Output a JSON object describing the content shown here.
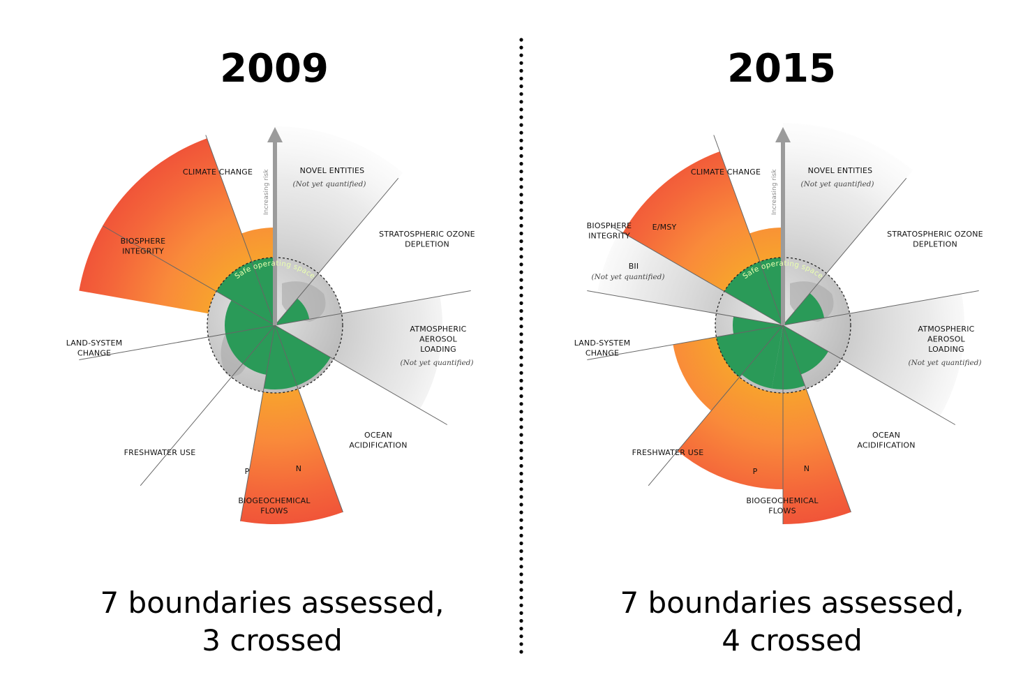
{
  "panels": [
    {
      "year": "2009",
      "summary_line1": "7 boundaries assessed,",
      "summary_line2": "3 crossed",
      "risk_label": "Increasing risk",
      "safe_label": "Safe operating space",
      "labels": {
        "climate_change": [
          "CLIMATE CHANGE"
        ],
        "novel_entities": [
          "NOVEL ENTITIES"
        ],
        "novel_entities_note": "(Not yet quantified)",
        "ozone": [
          "STRATOSPHERIC OZONE",
          "DEPLETION"
        ],
        "aerosol": [
          "ATMOSPHERIC",
          "AEROSOL",
          "LOADING"
        ],
        "aerosol_note": "(Not yet quantified)",
        "ocean": [
          "OCEAN",
          "ACIDIFICATION"
        ],
        "biogeochemical": [
          "BIOGEOCHEMICAL",
          "FLOWS"
        ],
        "p": "P",
        "n": "N",
        "freshwater": [
          "FRESHWATER USE"
        ],
        "land_system": [
          "LAND-SYSTEM",
          "CHANGE"
        ],
        "biosphere": [
          "BIOSPHERE",
          "INTEGRITY"
        ]
      }
    },
    {
      "year": "2015",
      "summary_line1": "7 boundaries assessed,",
      "summary_line2": "4 crossed",
      "risk_label": "Increasing risk",
      "safe_label": "Safe operating space",
      "labels": {
        "climate_change": [
          "CLIMATE CHANGE"
        ],
        "novel_entities": [
          "NOVEL ENTITIES"
        ],
        "novel_entities_note": "(Not yet quantified)",
        "ozone": [
          "STRATOSPHERIC OZONE",
          "DEPLETION"
        ],
        "aerosol": [
          "ATMOSPHERIC",
          "AEROSOL",
          "LOADING"
        ],
        "aerosol_note": "(Not yet quantified)",
        "ocean": [
          "OCEAN",
          "ACIDIFICATION"
        ],
        "biogeochemical": [
          "BIOGEOCHEMICAL",
          "FLOWS"
        ],
        "p": "P",
        "n": "N",
        "freshwater": [
          "FRESHWATER USE"
        ],
        "land_system": [
          "LAND-SYSTEM",
          "CHANGE"
        ],
        "biosphere": [
          "BIOSPHERE",
          "INTEGRITY"
        ],
        "emsy": "E/MSY",
        "bii": "BII",
        "bii_note": "(Not yet quantified)"
      }
    }
  ],
  "colors": {
    "safe_green": "#2a9a58",
    "globe_gray": "#cfcfcf",
    "danger_red": "#f0563a",
    "danger_orange": "#f8a12e",
    "unquantified_gray": "#d6d6d6",
    "divider": "#000000"
  }
}
